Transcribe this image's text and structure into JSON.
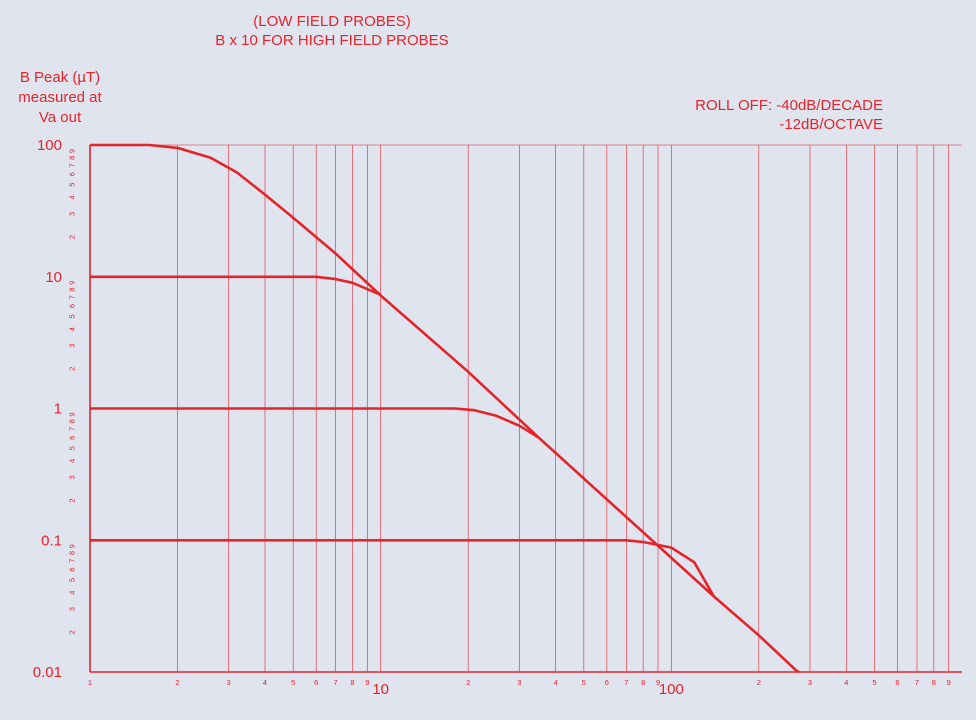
{
  "chart_data": {
    "type": "line",
    "title_lines": [
      "(LOW FIELD PROBES)",
      "B x 10 FOR HIGH FIELD PROBES"
    ],
    "ylabel_lines": [
      "B Peak (µT)",
      "measured at",
      "Va out"
    ],
    "annotation_lines": [
      "ROLL OFF: -40dB/DECADE",
      "-12dB/OCTAVE"
    ],
    "xscale": "log",
    "yscale": "log",
    "xlim": [
      1,
      1000
    ],
    "ylim": [
      0.01,
      100
    ],
    "y_major_ticks": [
      "100",
      "10",
      "1",
      "0.1",
      "0.01"
    ],
    "y_minor_ticks": [
      "2",
      "3",
      "4",
      "5",
      "6",
      "7",
      "8",
      "9"
    ],
    "x_minor_ticks": [
      "1",
      "2",
      "3",
      "4",
      "5",
      "6",
      "7",
      "8",
      "9"
    ],
    "x_major_ticks": [
      "10",
      "100"
    ],
    "grid": true,
    "series": [
      {
        "values": [
          [
            1,
            100
          ],
          [
            1.6,
            100
          ],
          [
            2,
            95
          ],
          [
            2.6,
            80
          ],
          [
            3.2,
            62
          ],
          [
            4,
            42
          ],
          [
            5,
            28
          ],
          [
            7,
            15
          ],
          [
            10,
            7.2
          ],
          [
            20,
            1.9
          ],
          [
            35,
            0.6
          ],
          [
            70,
            0.15
          ],
          [
            140,
            0.0375
          ],
          [
            200,
            0.019
          ],
          [
            270,
            0.0102
          ],
          [
            275,
            0.01
          ]
        ]
      },
      {
        "values": [
          [
            1,
            10
          ],
          [
            5,
            10
          ],
          [
            6,
            10
          ],
          [
            7,
            9.6
          ],
          [
            8,
            9
          ],
          [
            10,
            7.3
          ]
        ]
      },
      {
        "values": [
          [
            1,
            1
          ],
          [
            18,
            1
          ],
          [
            21,
            0.97
          ],
          [
            25,
            0.88
          ],
          [
            30,
            0.74
          ],
          [
            35,
            0.6
          ]
        ]
      },
      {
        "values": [
          [
            1,
            0.1
          ],
          [
            70,
            0.1
          ],
          [
            80,
            0.097
          ],
          [
            100,
            0.088
          ],
          [
            120,
            0.068
          ],
          [
            140,
            0.0375
          ]
        ]
      }
    ],
    "color": "#e3242b"
  }
}
